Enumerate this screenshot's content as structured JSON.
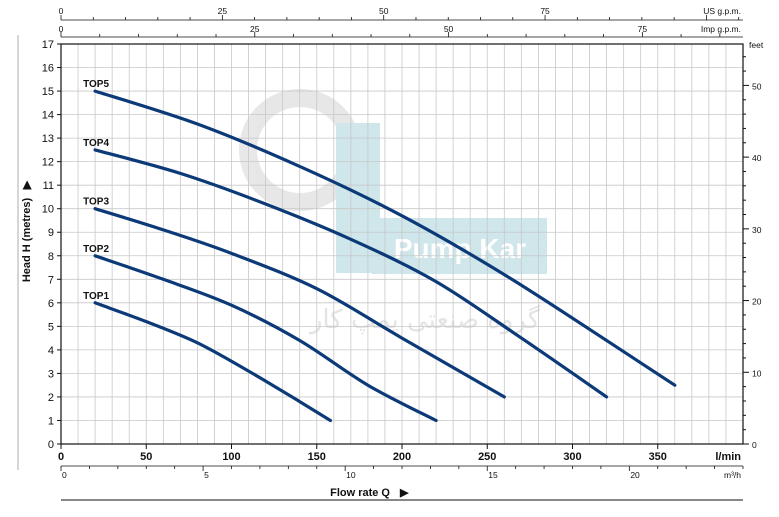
{
  "chart_data": {
    "type": "line",
    "ylabel": "Head H  (metres)",
    "xlabel": "Flow rate Q",
    "y_left": {
      "unit": "metres",
      "range": [
        0,
        17
      ],
      "ticks": [
        0,
        1,
        2,
        3,
        4,
        5,
        6,
        7,
        8,
        9,
        10,
        11,
        12,
        13,
        14,
        15,
        16,
        17
      ]
    },
    "y_right": {
      "unit": "feet",
      "ticks": [
        0,
        10,
        20,
        30,
        40,
        50
      ],
      "unit_label": "feet"
    },
    "x_bottom": {
      "unit_label": "l/min",
      "range": [
        0,
        400
      ],
      "ticks": [
        0,
        50,
        100,
        150,
        200,
        250,
        300,
        350
      ]
    },
    "x_bottom2": {
      "unit_label": "m³/h",
      "ticks": [
        0,
        5,
        10,
        15,
        20
      ]
    },
    "x_top1": {
      "unit_label": "US g.p.m.",
      "ticks": [
        0,
        25,
        50,
        75
      ]
    },
    "x_top2": {
      "unit_label": "Imp g.p.m.",
      "ticks": [
        0,
        25,
        50,
        75
      ]
    },
    "grid": true,
    "series": [
      {
        "name": "TOP1",
        "x": [
          20,
          50,
          80,
          110,
          140,
          158
        ],
        "y": [
          6,
          5.2,
          4.3,
          3.1,
          1.8,
          1
        ]
      },
      {
        "name": "TOP2",
        "x": [
          20,
          60,
          100,
          140,
          180,
          220
        ],
        "y": [
          8,
          7,
          5.9,
          4.4,
          2.5,
          1
        ]
      },
      {
        "name": "TOP3",
        "x": [
          20,
          60,
          100,
          150,
          200,
          260
        ],
        "y": [
          10,
          9.1,
          8.1,
          6.6,
          4.5,
          2
        ]
      },
      {
        "name": "TOP4",
        "x": [
          20,
          70,
          120,
          170,
          220,
          270,
          320
        ],
        "y": [
          12.5,
          11.5,
          10.2,
          8.7,
          6.9,
          4.5,
          2
        ]
      },
      {
        "name": "TOP5",
        "x": [
          20,
          80,
          140,
          200,
          260,
          320,
          360
        ],
        "y": [
          15,
          13.6,
          11.8,
          9.7,
          7.2,
          4.4,
          2.5
        ]
      }
    ]
  },
  "watermark": {
    "logo_text": "Pump Kar",
    "persian_text": "گروه صنعتی پمپ کار"
  }
}
